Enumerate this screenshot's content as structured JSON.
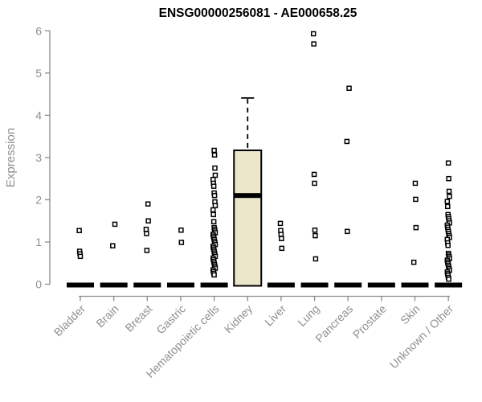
{
  "colors": {
    "background": "#ffffff",
    "title": "#000000",
    "axis": "#8a8a8a",
    "axis_text": "#8f8f8f",
    "data_ink": "#000000",
    "box_fill": "#ebe5c9",
    "marker_fill": "#ffffff"
  },
  "chart_data": {
    "type": "boxplot",
    "title": "ENSG00000256081 - AE000658.25",
    "ylabel": "Expression",
    "xlabel": "",
    "ylim": [
      0,
      6
    ],
    "yticks": [
      0,
      1,
      2,
      3,
      4,
      5,
      6
    ],
    "grid": false,
    "legend": null,
    "marker_style": "open-square",
    "categories": [
      "Bladder",
      "Brain",
      "Breast",
      "Gastric",
      "Hematopoietic cells",
      "Kidney",
      "Liver",
      "Lung",
      "Pancreas",
      "Prostate",
      "Skin",
      "Unknown / Other"
    ],
    "groups": [
      {
        "category": "Bladder",
        "box": {
          "whisker_low": 0,
          "q1": 0,
          "median": 0,
          "q3": 0,
          "whisker_high": 0
        },
        "outliers": [
          1.27,
          0.78,
          0.72,
          0.66
        ]
      },
      {
        "category": "Brain",
        "box": {
          "whisker_low": 0,
          "q1": 0,
          "median": 0,
          "q3": 0,
          "whisker_high": 0
        },
        "outliers": [
          1.42,
          0.91
        ]
      },
      {
        "category": "Breast",
        "box": {
          "whisker_low": 0,
          "q1": 0,
          "median": 0,
          "q3": 0,
          "whisker_high": 0
        },
        "outliers": [
          1.9,
          1.5,
          1.3,
          1.2,
          0.8
        ]
      },
      {
        "category": "Gastric",
        "box": {
          "whisker_low": 0,
          "q1": 0,
          "median": 0,
          "q3": 0,
          "whisker_high": 0
        },
        "outliers": [
          1.28,
          0.99
        ]
      },
      {
        "category": "Hematopoietic cells",
        "box": {
          "whisker_low": 0,
          "q1": 0,
          "median": 0,
          "q3": 0,
          "whisker_high": 0
        },
        "outliers": [
          3.17,
          3.06,
          2.75,
          2.58,
          2.48,
          2.39,
          2.32,
          2.16,
          2.1,
          1.95,
          1.86,
          1.76,
          1.65,
          1.48,
          1.34,
          1.3,
          1.26,
          1.22,
          1.18,
          1.14,
          1.1,
          1.06,
          1.02,
          0.98,
          0.94,
          0.9,
          0.86,
          0.82,
          0.78,
          0.74,
          0.7,
          0.66,
          0.62,
          0.58,
          0.54,
          0.5,
          0.46,
          0.42,
          0.38,
          0.34,
          0.3,
          0.26,
          0.22
        ]
      },
      {
        "category": "Kidney",
        "box": {
          "whisker_low": 0,
          "q1": 0,
          "median": 2.1,
          "q3": 3.17,
          "whisker_high": 4.41
        },
        "outliers": []
      },
      {
        "category": "Liver",
        "box": {
          "whisker_low": 0,
          "q1": 0,
          "median": 0,
          "q3": 0,
          "whisker_high": 0
        },
        "outliers": [
          1.44,
          1.27,
          1.18,
          1.08,
          0.85
        ]
      },
      {
        "category": "Lung",
        "box": {
          "whisker_low": 0,
          "q1": 0,
          "median": 0,
          "q3": 0,
          "whisker_high": 0
        },
        "outliers": [
          5.93,
          5.69,
          2.6,
          2.39,
          1.28,
          1.15,
          0.6
        ]
      },
      {
        "category": "Pancreas",
        "box": {
          "whisker_low": 0,
          "q1": 0,
          "median": 0,
          "q3": 0,
          "whisker_high": 0
        },
        "outliers": [
          4.64,
          3.38,
          1.25
        ]
      },
      {
        "category": "Prostate",
        "box": {
          "whisker_low": 0,
          "q1": 0,
          "median": 0,
          "q3": 0,
          "whisker_high": 0
        },
        "outliers": []
      },
      {
        "category": "Skin",
        "box": {
          "whisker_low": 0,
          "q1": 0,
          "median": 0,
          "q3": 0,
          "whisker_high": 0
        },
        "outliers": [
          2.39,
          2.01,
          1.34,
          0.52
        ]
      },
      {
        "category": "Unknown / Other",
        "box": {
          "whisker_low": 0,
          "q1": 0,
          "median": 0,
          "q3": 0,
          "whisker_high": 0
        },
        "outliers": [
          2.87,
          2.5,
          2.2,
          2.08,
          1.96,
          1.84,
          1.65,
          1.6,
          1.55,
          1.5,
          1.45,
          1.4,
          1.35,
          1.3,
          1.25,
          1.2,
          1.15,
          1.11,
          1.06,
          0.98,
          0.92,
          0.73,
          0.69,
          0.65,
          0.61,
          0.57,
          0.53,
          0.49,
          0.45,
          0.41,
          0.37,
          0.33,
          0.29,
          0.25,
          0.21,
          0.16,
          0.12
        ]
      }
    ]
  }
}
